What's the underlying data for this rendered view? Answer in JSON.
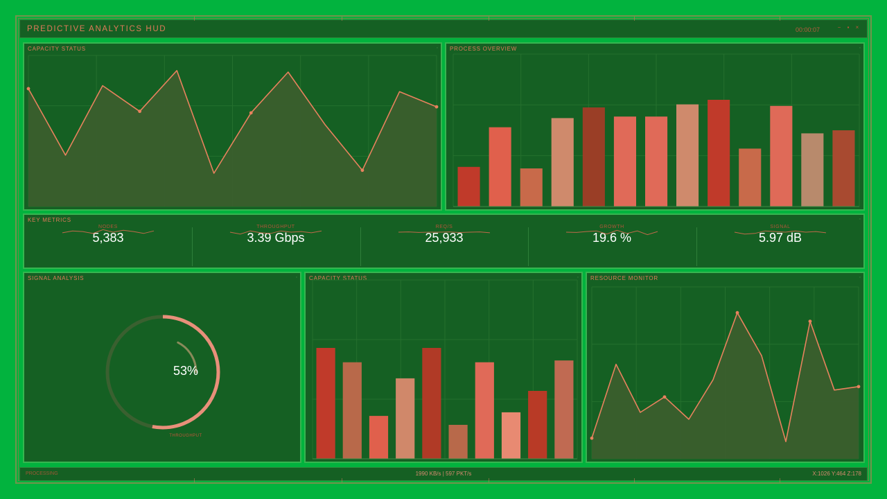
{
  "header": {
    "title": "PREDICTIVE ANALYTICS HUD",
    "time": "00:00:07"
  },
  "colors": {
    "background": "#02b33e",
    "panel": "#156023",
    "panel_border": "#36b650",
    "accent": "#e07a5a",
    "line": "#e8825e",
    "area_fill": "#3a5e2d"
  },
  "panels": {
    "capacity_status_top": {
      "title": "CAPACITY STATUS"
    },
    "process_overview": {
      "title": "PROCESS OVERVIEW"
    },
    "key_metrics": {
      "title": "KEY METRICS"
    },
    "signal_analysis": {
      "title": "SIGNAL ANALYSIS"
    },
    "capacity_status_bottom": {
      "title": "CAPACITY STATUS"
    },
    "resource_monitor": {
      "title": "RESOURCE MONITOR"
    }
  },
  "metrics": [
    {
      "label": "NODES",
      "value": "5,383",
      "spark": [
        0.45,
        0.6,
        0.55,
        0.4,
        0.7,
        0.5,
        0.65,
        0.55,
        0.4,
        0.6
      ]
    },
    {
      "label": "THROUGHPUT",
      "value": "3.39 Gbps",
      "spark": [
        0.5,
        0.35,
        0.6,
        0.45,
        0.4,
        0.6,
        0.5,
        0.55,
        0.45,
        0.6
      ]
    },
    {
      "label": "REQ/S",
      "value": "25,933",
      "spark": [
        0.5,
        0.52,
        0.48,
        0.5,
        0.5,
        0.52,
        0.47,
        0.5,
        0.52,
        0.45
      ]
    },
    {
      "label": "GROWTH",
      "value": "19.6 %",
      "spark": [
        0.5,
        0.48,
        0.55,
        0.6,
        0.35,
        0.65,
        0.4,
        0.6,
        0.3,
        0.55
      ]
    },
    {
      "label": "SIGNAL",
      "value": "5.97 dB",
      "spark": [
        0.5,
        0.35,
        0.4,
        0.6,
        0.55,
        0.5,
        0.6,
        0.5,
        0.55,
        0.45
      ]
    }
  ],
  "gauge": {
    "value_text": "53%",
    "label": "THROUGHPUT",
    "fraction": 0.53
  },
  "footer": {
    "status": "PROCESSING",
    "rate": "1990 KB/s | 597 PKT/s",
    "coords": "X:1026 Y:464 Z:178"
  },
  "chart_data": [
    {
      "type": "area",
      "panel": "capacity_status_top",
      "values": [
        78,
        34,
        80,
        63,
        90,
        22,
        62,
        89,
        54,
        24,
        76,
        66
      ],
      "ylim": [
        0,
        100
      ]
    },
    {
      "type": "bar",
      "panel": "process_overview",
      "values": [
        26,
        52,
        25,
        58,
        65,
        59,
        59,
        67,
        70,
        38,
        66,
        48,
        50
      ],
      "colors": [
        "#c03a2a",
        "#e0604c",
        "#c86a4a",
        "#cf8a6c",
        "#9a3e26",
        "#e06a58",
        "#e06a58",
        "#cf8a6c",
        "#c03a2a",
        "#c86a4a",
        "#df6a58",
        "#b88a6c",
        "#a84a30"
      ],
      "ylim": [
        0,
        100
      ]
    },
    {
      "type": "bar",
      "panel": "capacity_status_bottom",
      "values": [
        62,
        54,
        24,
        45,
        62,
        19,
        54,
        26,
        38,
        55
      ],
      "colors": [
        "#c03a2a",
        "#b8694a",
        "#e0604c",
        "#d0886a",
        "#b03a26",
        "#b8694a",
        "#e06a58",
        "#e88a72",
        "#b83a26",
        "#c06a52"
      ],
      "ylim": [
        0,
        100
      ]
    },
    {
      "type": "area",
      "panel": "resource_monitor",
      "values": [
        12,
        55,
        27,
        36,
        23,
        46,
        85,
        60,
        10,
        80,
        40,
        42
      ],
      "ylim": [
        0,
        100
      ]
    }
  ]
}
